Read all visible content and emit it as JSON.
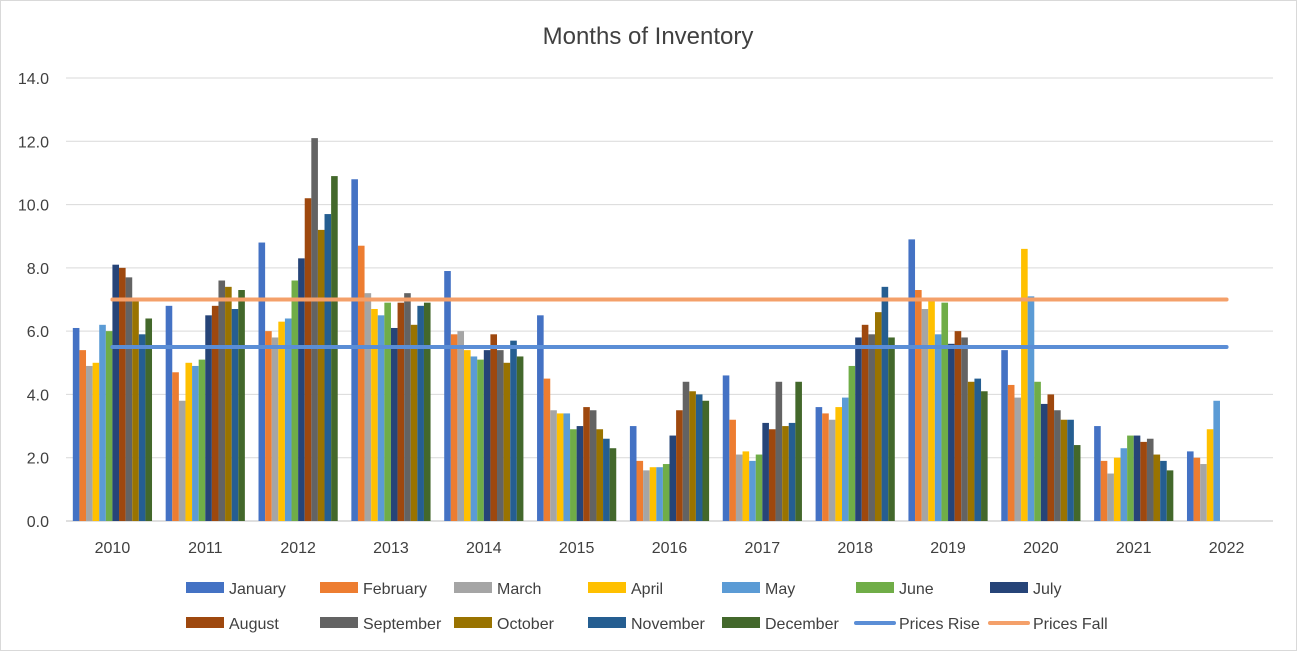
{
  "chart_data": {
    "type": "bar",
    "title": "Months of Inventory",
    "xlabel": "",
    "ylabel": "",
    "ylim": [
      0,
      14
    ],
    "yticks": [
      "0.0",
      "2.0",
      "4.0",
      "6.0",
      "8.0",
      "10.0",
      "12.0",
      "14.0"
    ],
    "grid": true,
    "legend_position": "bottom",
    "categories": [
      "2010",
      "2011",
      "2012",
      "2013",
      "2014",
      "2015",
      "2016",
      "2017",
      "2018",
      "2019",
      "2020",
      "2021",
      "2022"
    ],
    "series": [
      {
        "name": "January",
        "color": "#4472C4",
        "values": [
          6.1,
          6.8,
          8.8,
          10.8,
          7.9,
          6.5,
          3.0,
          4.6,
          3.6,
          8.9,
          5.4,
          3.0,
          2.2
        ]
      },
      {
        "name": "February",
        "color": "#ED7D31",
        "values": [
          5.4,
          4.7,
          6.0,
          8.7,
          5.9,
          4.5,
          1.9,
          3.2,
          3.4,
          7.3,
          4.3,
          1.9,
          2.0
        ]
      },
      {
        "name": "March",
        "color": "#A5A5A5",
        "values": [
          4.9,
          3.8,
          5.8,
          7.2,
          6.0,
          3.5,
          1.6,
          2.1,
          3.2,
          6.7,
          3.9,
          1.5,
          1.8
        ]
      },
      {
        "name": "April",
        "color": "#FFC000",
        "values": [
          5.0,
          5.0,
          6.3,
          6.7,
          5.4,
          3.4,
          1.7,
          2.2,
          3.6,
          7.0,
          8.6,
          2.0,
          2.9
        ]
      },
      {
        "name": "May",
        "color": "#5B9BD5",
        "values": [
          6.2,
          4.9,
          6.4,
          6.5,
          5.2,
          3.4,
          1.7,
          1.9,
          3.9,
          5.9,
          7.1,
          2.3,
          3.8
        ]
      },
      {
        "name": "June",
        "color": "#70AD47",
        "values": [
          6.0,
          5.1,
          7.6,
          6.9,
          5.1,
          2.9,
          1.8,
          2.1,
          4.9,
          6.9,
          4.4,
          2.7,
          null
        ]
      },
      {
        "name": "July",
        "color": "#264478",
        "values": [
          8.1,
          6.5,
          8.3,
          6.1,
          5.4,
          3.0,
          2.7,
          3.1,
          5.8,
          5.6,
          3.7,
          2.7,
          null
        ]
      },
      {
        "name": "August",
        "color": "#9E480E",
        "values": [
          8.0,
          6.8,
          10.2,
          6.9,
          5.9,
          3.6,
          3.5,
          2.9,
          6.2,
          6.0,
          4.0,
          2.5,
          null
        ]
      },
      {
        "name": "September",
        "color": "#636363",
        "values": [
          7.7,
          7.6,
          12.1,
          7.2,
          5.4,
          3.5,
          4.4,
          4.4,
          5.9,
          5.8,
          3.5,
          2.6,
          null
        ]
      },
      {
        "name": "October",
        "color": "#997300",
        "values": [
          7.0,
          7.4,
          9.2,
          6.2,
          5.0,
          2.9,
          4.1,
          3.0,
          6.6,
          4.4,
          3.2,
          2.1,
          null
        ]
      },
      {
        "name": "November",
        "color": "#255E91",
        "values": [
          5.9,
          6.7,
          9.7,
          6.8,
          5.7,
          2.6,
          4.0,
          3.1,
          7.4,
          4.5,
          3.2,
          1.9,
          null
        ]
      },
      {
        "name": "December",
        "color": "#43682B",
        "values": [
          6.4,
          7.3,
          10.9,
          6.9,
          5.2,
          2.3,
          3.8,
          4.4,
          5.8,
          4.1,
          2.4,
          1.6,
          null
        ]
      }
    ],
    "reference_lines": [
      {
        "name": "Prices Rise",
        "color": "#5B8ED6",
        "value": 5.5
      },
      {
        "name": "Prices Fall",
        "color": "#F4A06A",
        "value": 7.0
      }
    ]
  }
}
